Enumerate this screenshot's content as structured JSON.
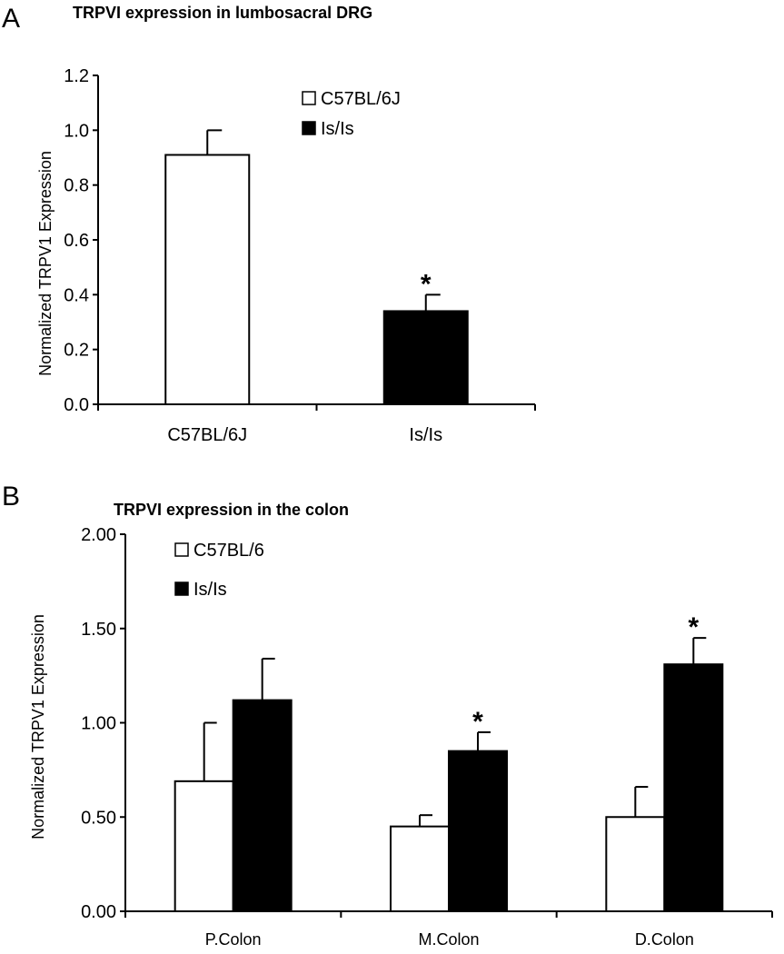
{
  "chart_data": [
    {
      "panel": "A",
      "type": "bar",
      "title": "TRPVI expression in lumbosacral DRG",
      "ylabel": "Normalized TRPV1 Expression",
      "xlabel": "",
      "ylim": [
        0,
        1.2
      ],
      "yticks": [
        "0.0",
        "0.2",
        "0.4",
        "0.6",
        "0.8",
        "1.0",
        "1.2"
      ],
      "categories": [
        "C57BL/6J",
        "Is/Is"
      ],
      "series": [
        {
          "name": "C57BL/6J",
          "color": "#ffffff",
          "values": [
            0.91,
            null
          ],
          "errors": [
            0.09,
            null
          ]
        },
        {
          "name": "Is/Is",
          "color": "#000000",
          "values": [
            null,
            0.34
          ],
          "errors": [
            null,
            0.06
          ]
        }
      ],
      "significance": [
        "",
        "*"
      ],
      "legend_position": "top-right",
      "grid": false
    },
    {
      "panel": "B",
      "type": "bar",
      "title": "TRPVI expression in the colon",
      "ylabel": "Normalized TRPV1 Expression",
      "xlabel": "",
      "ylim": [
        0,
        2.0
      ],
      "yticks": [
        "0.00",
        "0.50",
        "1.00",
        "1.50",
        "2.00"
      ],
      "categories": [
        "P.Colon",
        "M.Colon",
        "D.Colon"
      ],
      "series": [
        {
          "name": "C57BL/6",
          "color": "#ffffff",
          "values": [
            0.69,
            0.45,
            0.5
          ],
          "errors": [
            0.31,
            0.06,
            0.16
          ]
        },
        {
          "name": "Is/Is",
          "color": "#000000",
          "values": [
            1.12,
            0.85,
            1.31
          ],
          "errors": [
            0.22,
            0.1,
            0.14
          ]
        }
      ],
      "significance": [
        "",
        "*",
        "*"
      ],
      "legend_position": "top-left",
      "grid": false
    }
  ]
}
